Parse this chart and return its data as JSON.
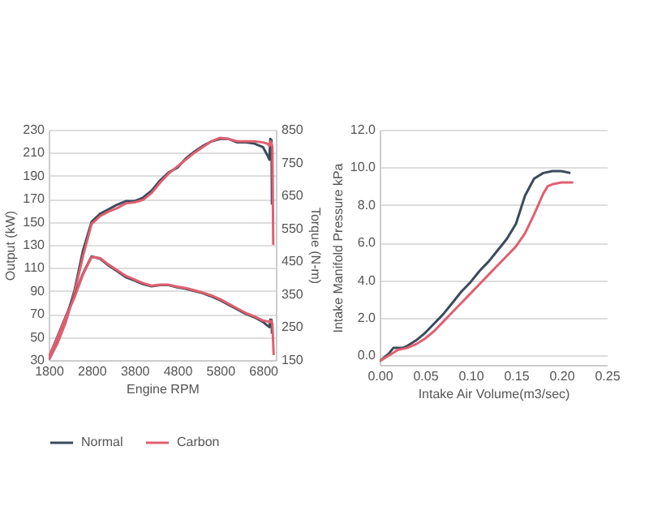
{
  "chart_data": [
    {
      "type": "line",
      "xlabel": "Engine RPM",
      "ylabel": "Output (kW)",
      "y2label": "Torque (N-m)",
      "xlim": [
        1800,
        7100
      ],
      "xticks": [
        1800,
        2800,
        3800,
        4800,
        5800,
        6800
      ],
      "ylim": [
        30,
        230
      ],
      "yticks": [
        30,
        50,
        70,
        90,
        110,
        130,
        150,
        170,
        190,
        210,
        230
      ],
      "y2lim": [
        150,
        850
      ],
      "y2ticks": [
        150,
        250,
        350,
        450,
        550,
        650,
        750,
        850
      ],
      "grid": "y",
      "legend": "bottom",
      "series": [
        {
          "name": "Normal",
          "color": "#3c4a5c",
          "x": [
            1800,
            2000,
            2200,
            2400,
            2600,
            2800,
            3000,
            3200,
            3400,
            3600,
            3800,
            4000,
            4200,
            4400,
            4600,
            4800,
            5000,
            5200,
            5400,
            5600,
            5800,
            6000,
            6200,
            6400,
            6600,
            6800,
            6900,
            6950,
            6970,
            7000,
            7010
          ],
          "values": [
            30,
            45,
            65,
            90,
            125,
            150,
            157,
            161,
            165,
            168,
            168,
            171,
            177,
            186,
            193,
            197,
            205,
            211,
            216,
            220,
            222,
            222,
            219,
            219,
            218,
            215,
            208,
            204,
            222,
            221,
            165
          ]
        },
        {
          "name": "Carbon",
          "color": "#e06070",
          "x": [
            1800,
            2000,
            2200,
            2400,
            2600,
            2800,
            3000,
            3200,
            3400,
            3600,
            3800,
            4000,
            4200,
            4400,
            4600,
            4800,
            5000,
            5200,
            5400,
            5600,
            5800,
            6000,
            6200,
            6400,
            6600,
            6800,
            6900,
            6950,
            6980,
            7020,
            7040
          ],
          "values": [
            30,
            44,
            63,
            88,
            120,
            148,
            155,
            159,
            162,
            166,
            167,
            169,
            175,
            184,
            192,
            198,
            204,
            210,
            215,
            220,
            223,
            222,
            220,
            220,
            220,
            219,
            218,
            216,
            220,
            215,
            130
          ]
        },
        {
          "color": "#3c4a5c",
          "axis": "y2",
          "x": [
            1800,
            2000,
            2200,
            2400,
            2600,
            2800,
            3000,
            3200,
            3400,
            3600,
            3800,
            4000,
            4200,
            4400,
            4600,
            4800,
            5000,
            5200,
            5400,
            5600,
            5800,
            6000,
            6200,
            6400,
            6600,
            6800,
            6900,
            6950,
            6970,
            7000,
            7010
          ],
          "values": [
            157,
            220,
            283,
            343,
            413,
            465,
            458,
            437,
            420,
            402,
            392,
            381,
            374,
            378,
            378,
            371,
            367,
            360,
            353,
            343,
            332,
            318,
            304,
            290,
            280,
            266,
            255,
            250,
            273,
            272,
            230
          ]
        },
        {
          "color": "#e06070",
          "axis": "y2",
          "x": [
            1800,
            2000,
            2200,
            2400,
            2600,
            2800,
            3000,
            3200,
            3400,
            3600,
            3800,
            4000,
            4200,
            4400,
            4600,
            4800,
            5000,
            5200,
            5400,
            5600,
            5800,
            6000,
            6200,
            6400,
            6600,
            6800,
            6900,
            6950,
            6980,
            7020,
            7050
          ],
          "values": [
            157,
            218,
            280,
            340,
            410,
            463,
            460,
            440,
            423,
            406,
            395,
            384,
            376,
            379,
            379,
            373,
            369,
            362,
            355,
            346,
            335,
            321,
            307,
            293,
            283,
            270,
            268,
            265,
            270,
            260,
            165
          ]
        }
      ]
    },
    {
      "type": "line",
      "xlabel": "Intake Air Volume(m3/sec)",
      "ylabel": "Intake Manifold Pressure kPa",
      "xlim": [
        0,
        0.25
      ],
      "xticks": [
        {
          "value": 0,
          "label": "0.00"
        },
        0.05,
        {
          "value": 0.1,
          "label": "0.10"
        },
        0.15,
        {
          "value": 0.2,
          "label": "0.20"
        },
        0.25
      ],
      "ylim": [
        -0.5,
        12
      ],
      "yticks": [
        {
          "value": 0,
          "label": "0.0"
        },
        {
          "value": 2,
          "label": "2.0"
        },
        {
          "value": 4,
          "label": "4.0"
        },
        {
          "value": 6,
          "label": "6.0"
        },
        {
          "value": 8,
          "label": "8.0"
        },
        {
          "value": 10,
          "label": "10.0"
        },
        {
          "value": 12,
          "label": "12.0"
        }
      ],
      "grid": "y",
      "series": [
        {
          "color": "#3c4a5c",
          "x": [
            0,
            0.01,
            0.015,
            0.025,
            0.03,
            0.04,
            0.05,
            0.06,
            0.07,
            0.08,
            0.09,
            0.1,
            0.11,
            0.12,
            0.13,
            0.14,
            0.15,
            0.16,
            0.17,
            0.18,
            0.19,
            0.2,
            0.21
          ],
          "values": [
            -0.3,
            0.1,
            0.4,
            0.4,
            0.5,
            0.8,
            1.2,
            1.7,
            2.2,
            2.8,
            3.4,
            3.9,
            4.5,
            5.0,
            5.6,
            6.2,
            7.0,
            8.5,
            9.4,
            9.7,
            9.8,
            9.8,
            9.7
          ]
        },
        {
          "color": "#e06070",
          "x": [
            0,
            0.01,
            0.02,
            0.03,
            0.04,
            0.05,
            0.06,
            0.07,
            0.08,
            0.09,
            0.1,
            0.11,
            0.12,
            0.13,
            0.14,
            0.15,
            0.16,
            0.17,
            0.18,
            0.185,
            0.19,
            0.2,
            0.213
          ],
          "values": [
            -0.3,
            0,
            0.3,
            0.4,
            0.6,
            0.9,
            1.3,
            1.8,
            2.3,
            2.8,
            3.3,
            3.8,
            4.3,
            4.8,
            5.3,
            5.8,
            6.5,
            7.5,
            8.6,
            9.0,
            9.1,
            9.2,
            9.2
          ]
        }
      ]
    }
  ]
}
